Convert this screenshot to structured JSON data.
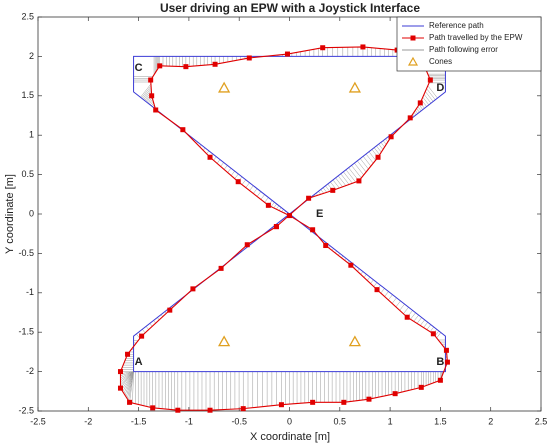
{
  "chart_data": {
    "type": "line",
    "title": "User driving an EPW with a Joystick Interface",
    "x_label": "X coordinate [m]",
    "y_label": "Y coordinate [m]",
    "xlim": [
      -2.5,
      2.5
    ],
    "ylim": [
      -2.5,
      2.5
    ],
    "xticks": [
      -2.5,
      -2,
      -1.5,
      -1,
      -0.5,
      0,
      0.5,
      1,
      1.5,
      2,
      2.5
    ],
    "yticks": [
      -2.5,
      -2,
      -1.5,
      -1,
      -0.5,
      0,
      0.5,
      1,
      1.5,
      2,
      2.5
    ],
    "legend": "northeast",
    "series": [
      {
        "name": "Reference path",
        "color": "#3b3bd6",
        "kind": "line",
        "x": [
          -1.55,
          1.55,
          1.55,
          -1.55,
          -1.55,
          1.55,
          1.55,
          -1.55,
          -1.55
        ],
        "values": [
          -2,
          -2,
          -1.55,
          1.55,
          2,
          2,
          1.55,
          -1.55,
          -2
        ]
      },
      {
        "name": "Path travelled by the EPW",
        "color": "#e00000",
        "kind": "markers-line",
        "x": [
          -0.13,
          0.19,
          0.43,
          0.69,
          0.88,
          1.01,
          1.2,
          1.3,
          1.4,
          1.35,
          1.23,
          1.07,
          0.73,
          0.33,
          -0.02,
          -0.4,
          -0.74,
          -1.03,
          -1.29,
          -1.38,
          -1.37,
          -1.33,
          -1.06,
          -0.79,
          -0.51,
          -0.21,
          0,
          0.23,
          0.36,
          0.61,
          0.87,
          1.17,
          1.43,
          1.56,
          1.57,
          1.5,
          1.31,
          1.05,
          0.79,
          0.54,
          0.23,
          -0.08,
          -0.46,
          -0.79,
          -1.11,
          -1.36,
          -1.59,
          -1.68,
          -1.68,
          -1.61,
          -1.47,
          -1.19,
          -0.96,
          -0.68,
          -0.42,
          -0.13
        ],
        "values": [
          -0.16,
          0.2,
          0.3,
          0.42,
          0.72,
          0.98,
          1.22,
          1.41,
          1.7,
          1.85,
          2.02,
          2.08,
          2.12,
          2.11,
          2.03,
          1.98,
          1.9,
          1.87,
          1.88,
          1.7,
          1.5,
          1.32,
          1.07,
          0.72,
          0.41,
          0.11,
          -0.02,
          -0.2,
          -0.4,
          -0.65,
          -0.96,
          -1.31,
          -1.52,
          -1.73,
          -1.88,
          -2.11,
          -2.2,
          -2.28,
          -2.35,
          -2.39,
          -2.39,
          -2.42,
          -2.47,
          -2.49,
          -2.49,
          -2.46,
          -2.39,
          -2.21,
          -2,
          -1.78,
          -1.55,
          -1.22,
          -0.95,
          -0.69,
          -0.39,
          -0.16
        ]
      },
      {
        "name": "Path following error",
        "color": "#9a9a9a",
        "kind": "error"
      },
      {
        "name": "Cones",
        "color": "#e0a020",
        "kind": "triangles",
        "x": [
          -0.65,
          0.65,
          -0.65,
          0.65
        ],
        "values": [
          1.6,
          1.6,
          -1.62,
          -1.62
        ]
      }
    ],
    "annotations": [
      {
        "text": "A",
        "x": -1.5,
        "y": -1.88
      },
      {
        "text": "B",
        "x": 1.5,
        "y": -1.88
      },
      {
        "text": "C",
        "x": -1.5,
        "y": 1.85
      },
      {
        "text": "D",
        "x": 1.5,
        "y": 1.6
      },
      {
        "text": "E",
        "x": 0.3,
        "y": 0.0
      }
    ]
  }
}
